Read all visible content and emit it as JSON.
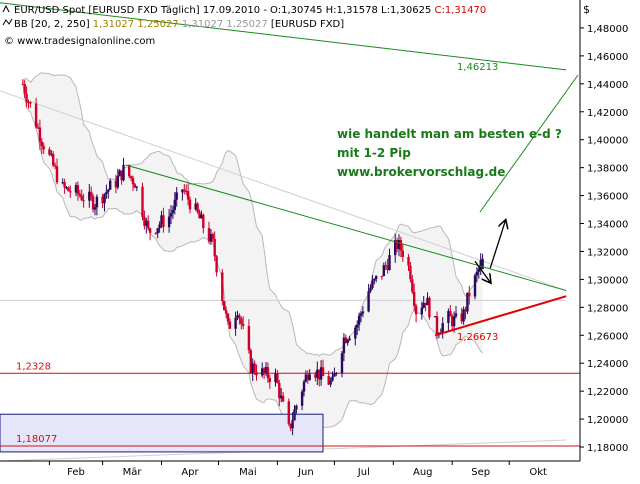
{
  "header": {
    "line1_label": "EUR/USD Spot [EURUSD FXD  Täglich] 17.09.2010 - O:1,30745 H:1,31578 L:1,30625 ",
    "line1_close": "C:1,31470",
    "line2_label": "BB [20, 2, 250] ",
    "line2_values1": "1,31027 1,25027",
    "line2_values2": " 1,31027 1,25027",
    "line2_symbol": " [EURUSD FXD]",
    "copyright": "© www.tradesignalonline.com",
    "currency_symbol": "$"
  },
  "annotation": {
    "line1": "wie handelt man am besten e-d ?",
    "line2": "mit 1-2 Pip",
    "line3": "www.brokervorschlag.de",
    "color": "#1a7a1a"
  },
  "colors": {
    "up": "#2a0a5e",
    "down": "#d0002a",
    "bands": "#b8b8b8",
    "trend_green": "#1a8a1a",
    "trend_red": "#e00000",
    "level_red": "#d01010",
    "box_fill": "#e6e6fa",
    "box_stroke": "#1a1a7a"
  },
  "chart_data": {
    "type": "candlestick",
    "instrument": "EUR/USD Spot",
    "timeframe": "Täglich",
    "x_month_labels": [
      "Feb",
      "Mär",
      "Apr",
      "Mai",
      "Jun",
      "Jul",
      "Aug",
      "Sep",
      "Okt"
    ],
    "y_ticks": [
      "1,48000",
      "1,46000",
      "1,44000",
      "1,42000",
      "1,40000",
      "1,38000",
      "1,36000",
      "1,34000",
      "1,32000",
      "1,30000",
      "1,28000",
      "1,26000",
      "1,24000",
      "1,22000",
      "1,20000",
      "1,18000"
    ],
    "ylim": [
      1.17,
      1.5
    ],
    "close_path": [
      [
        "2010-01-18",
        1.44
      ],
      [
        "2010-01-28",
        1.4
      ],
      [
        "2010-02-08",
        1.365
      ],
      [
        "2010-02-15",
        1.362
      ],
      [
        "2010-02-25",
        1.355
      ],
      [
        "2010-03-08",
        1.37
      ],
      [
        "2010-03-12",
        1.378
      ],
      [
        "2010-03-18",
        1.37
      ],
      [
        "2010-03-25",
        1.334
      ],
      [
        "2010-04-05",
        1.345
      ],
      [
        "2010-04-12",
        1.365
      ],
      [
        "2010-04-20",
        1.346
      ],
      [
        "2010-04-28",
        1.325
      ],
      [
        "2010-05-06",
        1.265
      ],
      [
        "2010-05-11",
        1.28
      ],
      [
        "2010-05-18",
        1.238
      ],
      [
        "2010-05-25",
        1.232
      ],
      [
        "2010-05-31",
        1.23
      ],
      [
        "2010-06-07",
        1.192
      ],
      [
        "2010-06-11",
        1.21
      ],
      [
        "2010-06-18",
        1.238
      ],
      [
        "2010-06-25",
        1.23
      ],
      [
        "2010-06-30",
        1.225
      ],
      [
        "2010-07-06",
        1.258
      ],
      [
        "2010-07-13",
        1.268
      ],
      [
        "2010-07-19",
        1.292
      ],
      [
        "2010-07-26",
        1.305
      ],
      [
        "2010-08-03",
        1.325
      ],
      [
        "2010-08-06",
        1.32
      ],
      [
        "2010-08-10",
        1.305
      ],
      [
        "2010-08-13",
        1.278
      ],
      [
        "2010-08-18",
        1.286
      ],
      [
        "2010-08-24",
        1.264
      ],
      [
        "2010-08-30",
        1.272
      ],
      [
        "2010-09-03",
        1.27
      ],
      [
        "2010-09-07",
        1.275
      ],
      [
        "2010-09-10",
        1.29
      ],
      [
        "2010-09-14",
        1.303
      ],
      [
        "2010-09-17",
        1.3147
      ]
    ],
    "bollinger": {
      "period": 20,
      "deviation": 2,
      "width": 250,
      "upper_last": 1.31027,
      "lower_last": 1.25027
    },
    "trendlines": [
      {
        "name": "resistance",
        "color": "green",
        "from": [
          "2010-03-13",
          1.382
        ],
        "to": [
          "2010-10-31",
          1.292
        ]
      },
      {
        "name": "upper",
        "color": "green",
        "from": [
          "2010-01-06",
          1.498
        ],
        "to": [
          "2010-10-31",
          1.45
        ],
        "label": "1,46213"
      },
      {
        "name": "support",
        "color": "red",
        "from": [
          "2010-08-23",
          1.26
        ],
        "to": [
          "2010-10-31",
          1.288
        ],
        "label": "1,26673"
      }
    ],
    "levels": [
      {
        "value": 1.2328,
        "label": "1,2328"
      },
      {
        "value": 1.18077,
        "label": "1,18077"
      }
    ],
    "zone": {
      "from": "2010-01-06",
      "to": "2010-06-25",
      "ylim": [
        1.1765,
        1.2035
      ]
    },
    "arrows": [
      {
        "from": [
          "2010-09-13",
          1.313
        ],
        "to": [
          "2010-09-21",
          1.298
        ]
      },
      {
        "from": [
          "2010-09-21",
          1.308
        ],
        "to": [
          "2010-09-29",
          1.342
        ]
      }
    ]
  }
}
